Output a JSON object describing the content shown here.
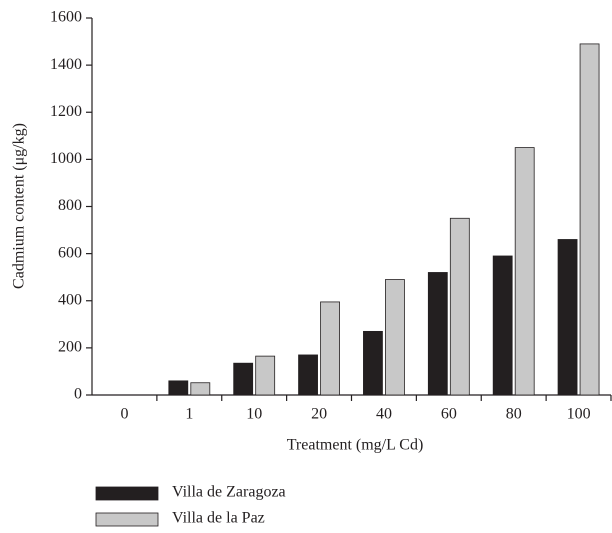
{
  "chart_data": {
    "type": "bar",
    "x_label": "Treatment (mg/L Cd)",
    "y_label": "Cadmium content (μg/kg)",
    "categories": [
      "0",
      "1",
      "10",
      "20",
      "40",
      "60",
      "80",
      "100"
    ],
    "series": [
      {
        "name": "Villa de Zaragoza",
        "color": "#231f20",
        "values": [
          0,
          60,
          135,
          170,
          270,
          520,
          590,
          660
        ]
      },
      {
        "name": "Villa de la Paz",
        "color": "#c8c8c8",
        "values": [
          0,
          52,
          165,
          395,
          490,
          750,
          1050,
          1490
        ]
      }
    ],
    "ylim": [
      0,
      1600
    ],
    "yticks": [
      0,
      200,
      400,
      600,
      800,
      1000,
      1200,
      1400,
      1600
    ],
    "legend": "bottom-left"
  }
}
